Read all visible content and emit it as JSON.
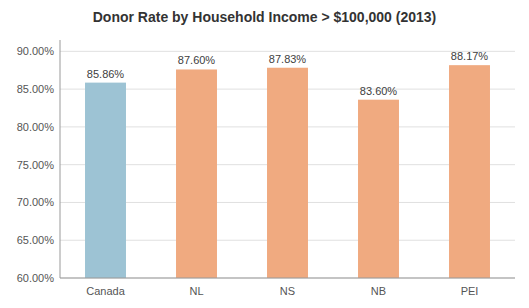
{
  "chart_data": {
    "type": "bar",
    "title": "Donor Rate by Household Income > $100,000 (2013)",
    "categories": [
      "Canada",
      "NL",
      "NS",
      "NB",
      "PEI"
    ],
    "values": [
      85.86,
      87.6,
      87.83,
      83.6,
      88.17
    ],
    "value_labels": [
      "85.86%",
      "87.60%",
      "87.83%",
      "83.60%",
      "88.17%"
    ],
    "data_labels": true,
    "colors": [
      "#9dc3d4",
      "#f0aa80",
      "#f0aa80",
      "#f0aa80",
      "#f0aa80"
    ],
    "ylim": [
      60,
      91.5
    ],
    "yticks": [
      {
        "value": 60,
        "label": "60.00%"
      },
      {
        "value": 65,
        "label": "65.00%"
      },
      {
        "value": 70,
        "label": "70.00%"
      },
      {
        "value": 75,
        "label": "75.00%"
      },
      {
        "value": 80,
        "label": "80.00%"
      },
      {
        "value": 85,
        "label": "85.00%"
      },
      {
        "value": 90,
        "label": "90.00%"
      }
    ],
    "grid": true
  }
}
